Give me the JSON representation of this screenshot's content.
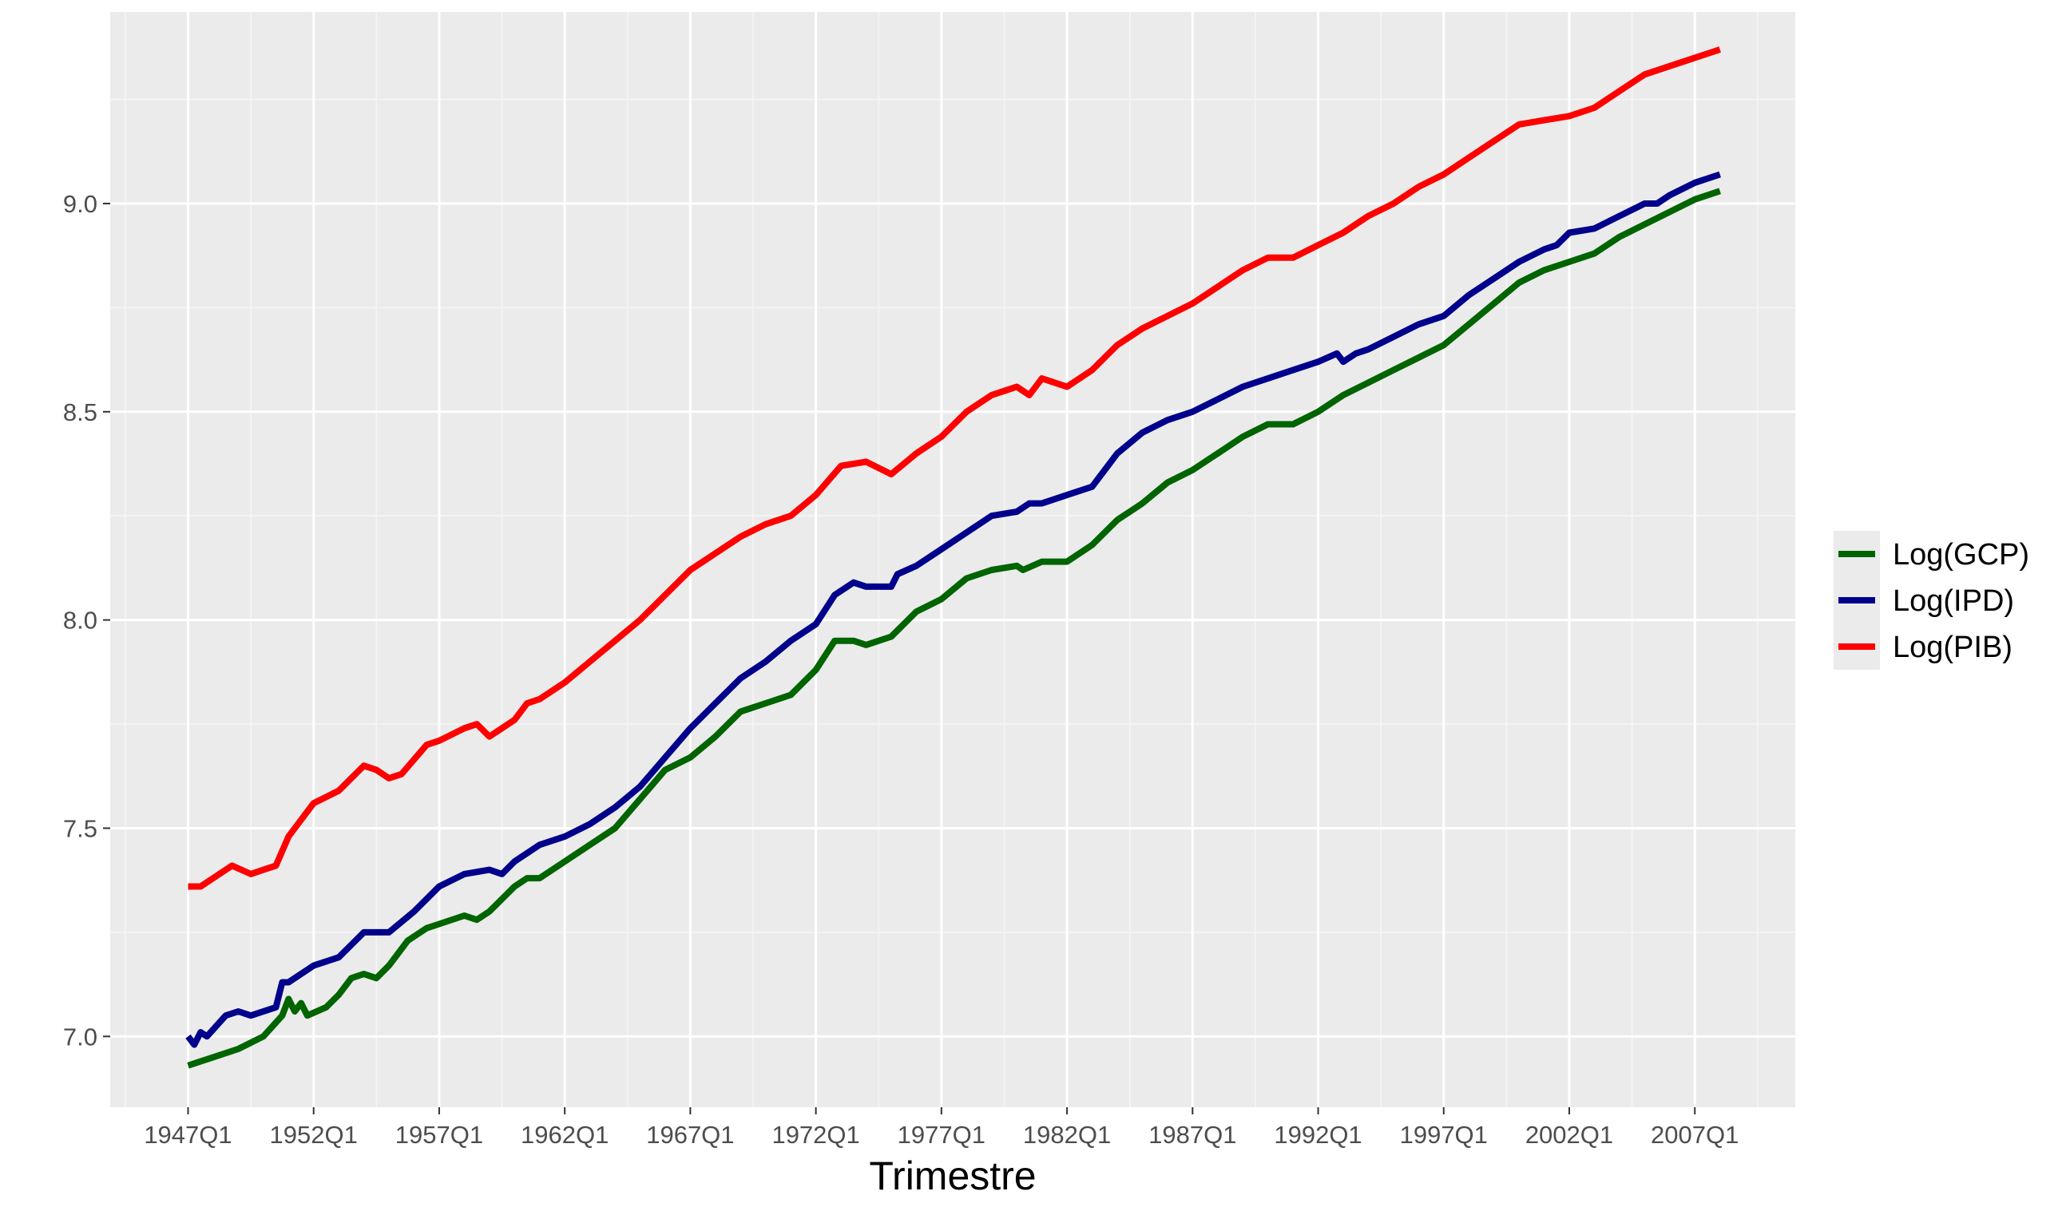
{
  "colors": {
    "panel": "#ebebeb",
    "grid_major": "#ffffff",
    "grid_minor": "#f5f5f5",
    "tick": "#333333",
    "tick_text": "#4d4d4d"
  },
  "chart_data": {
    "type": "line",
    "title": "",
    "xlabel": "Trimestre",
    "ylabel": "",
    "xlim": [
      1943.9,
      2011.0
    ],
    "ylim": [
      6.83,
      9.46
    ],
    "x_ticks": [
      1947,
      1952,
      1957,
      1962,
      1967,
      1972,
      1977,
      1982,
      1987,
      1992,
      1997,
      2002,
      2007
    ],
    "x_tick_labels": [
      "1947Q1",
      "1952Q1",
      "1957Q1",
      "1962Q1",
      "1967Q1",
      "1972Q1",
      "1977Q1",
      "1982Q1",
      "1987Q1",
      "1992Q1",
      "1997Q1",
      "2002Q1",
      "2007Q1"
    ],
    "y_ticks": [
      7.0,
      7.5,
      8.0,
      8.5,
      9.0
    ],
    "y_tick_labels": [
      "7.0",
      "7.5",
      "8.0",
      "8.5",
      "9.0"
    ],
    "grid": true,
    "legend_position": "right",
    "series": [
      {
        "name": "Log(GCP)",
        "color": "#006400",
        "points": [
          [
            1947.0,
            6.93
          ],
          [
            1947.5,
            6.94
          ],
          [
            1948.0,
            6.95
          ],
          [
            1949.0,
            6.97
          ],
          [
            1950.0,
            7.0
          ],
          [
            1950.75,
            7.05
          ],
          [
            1951.0,
            7.09
          ],
          [
            1951.25,
            7.06
          ],
          [
            1951.5,
            7.08
          ],
          [
            1951.75,
            7.05
          ],
          [
            1952.5,
            7.07
          ],
          [
            1953.0,
            7.1
          ],
          [
            1953.5,
            7.14
          ],
          [
            1954.0,
            7.15
          ],
          [
            1954.5,
            7.14
          ],
          [
            1955.0,
            7.17
          ],
          [
            1955.75,
            7.23
          ],
          [
            1956.5,
            7.26
          ],
          [
            1957.0,
            7.27
          ],
          [
            1958.0,
            7.29
          ],
          [
            1958.5,
            7.28
          ],
          [
            1959.0,
            7.3
          ],
          [
            1960.0,
            7.36
          ],
          [
            1960.5,
            7.38
          ],
          [
            1961.0,
            7.38
          ],
          [
            1962.0,
            7.42
          ],
          [
            1963.0,
            7.46
          ],
          [
            1964.0,
            7.5
          ],
          [
            1965.0,
            7.57
          ],
          [
            1966.0,
            7.64
          ],
          [
            1967.0,
            7.67
          ],
          [
            1968.0,
            7.72
          ],
          [
            1969.0,
            7.78
          ],
          [
            1970.0,
            7.8
          ],
          [
            1971.0,
            7.82
          ],
          [
            1972.0,
            7.88
          ],
          [
            1972.75,
            7.95
          ],
          [
            1973.5,
            7.95
          ],
          [
            1974.0,
            7.94
          ],
          [
            1975.0,
            7.96
          ],
          [
            1976.0,
            8.02
          ],
          [
            1977.0,
            8.05
          ],
          [
            1978.0,
            8.1
          ],
          [
            1979.0,
            8.12
          ],
          [
            1980.0,
            8.13
          ],
          [
            1980.25,
            8.12
          ],
          [
            1981.0,
            8.14
          ],
          [
            1982.0,
            8.14
          ],
          [
            1983.0,
            8.18
          ],
          [
            1984.0,
            8.24
          ],
          [
            1985.0,
            8.28
          ],
          [
            1986.0,
            8.33
          ],
          [
            1987.0,
            8.36
          ],
          [
            1988.0,
            8.4
          ],
          [
            1989.0,
            8.44
          ],
          [
            1990.0,
            8.47
          ],
          [
            1991.0,
            8.47
          ],
          [
            1992.0,
            8.5
          ],
          [
            1993.0,
            8.54
          ],
          [
            1994.0,
            8.57
          ],
          [
            1995.0,
            8.6
          ],
          [
            1996.0,
            8.63
          ],
          [
            1997.0,
            8.66
          ],
          [
            1998.0,
            8.71
          ],
          [
            1999.0,
            8.76
          ],
          [
            2000.0,
            8.81
          ],
          [
            2001.0,
            8.84
          ],
          [
            2002.0,
            8.86
          ],
          [
            2003.0,
            8.88
          ],
          [
            2004.0,
            8.92
          ],
          [
            2005.0,
            8.95
          ],
          [
            2006.0,
            8.98
          ],
          [
            2007.0,
            9.01
          ],
          [
            2008.0,
            9.03
          ]
        ]
      },
      {
        "name": "Log(IPD)",
        "color": "#00008b",
        "points": [
          [
            1947.0,
            7.0
          ],
          [
            1947.25,
            6.98
          ],
          [
            1947.5,
            7.01
          ],
          [
            1947.75,
            7.0
          ],
          [
            1948.5,
            7.05
          ],
          [
            1949.0,
            7.06
          ],
          [
            1949.5,
            7.05
          ],
          [
            1950.5,
            7.07
          ],
          [
            1950.75,
            7.13
          ],
          [
            1951.0,
            7.13
          ],
          [
            1952.0,
            7.17
          ],
          [
            1953.0,
            7.19
          ],
          [
            1954.0,
            7.25
          ],
          [
            1954.5,
            7.25
          ],
          [
            1955.0,
            7.25
          ],
          [
            1956.0,
            7.3
          ],
          [
            1957.0,
            7.36
          ],
          [
            1958.0,
            7.39
          ],
          [
            1959.0,
            7.4
          ],
          [
            1959.5,
            7.39
          ],
          [
            1960.0,
            7.42
          ],
          [
            1961.0,
            7.46
          ],
          [
            1962.0,
            7.48
          ],
          [
            1963.0,
            7.51
          ],
          [
            1964.0,
            7.55
          ],
          [
            1965.0,
            7.6
          ],
          [
            1966.0,
            7.67
          ],
          [
            1967.0,
            7.74
          ],
          [
            1968.0,
            7.8
          ],
          [
            1969.0,
            7.86
          ],
          [
            1970.0,
            7.9
          ],
          [
            1971.0,
            7.95
          ],
          [
            1972.0,
            7.99
          ],
          [
            1972.75,
            8.06
          ],
          [
            1973.5,
            8.09
          ],
          [
            1974.0,
            8.08
          ],
          [
            1975.0,
            8.08
          ],
          [
            1975.25,
            8.11
          ],
          [
            1976.0,
            8.13
          ],
          [
            1977.0,
            8.17
          ],
          [
            1978.0,
            8.21
          ],
          [
            1979.0,
            8.25
          ],
          [
            1980.0,
            8.26
          ],
          [
            1980.5,
            8.28
          ],
          [
            1981.0,
            8.28
          ],
          [
            1982.0,
            8.3
          ],
          [
            1983.0,
            8.32
          ],
          [
            1984.0,
            8.4
          ],
          [
            1985.0,
            8.45
          ],
          [
            1986.0,
            8.48
          ],
          [
            1987.0,
            8.5
          ],
          [
            1988.0,
            8.53
          ],
          [
            1989.0,
            8.56
          ],
          [
            1990.0,
            8.58
          ],
          [
            1991.0,
            8.6
          ],
          [
            1992.0,
            8.62
          ],
          [
            1992.75,
            8.64
          ],
          [
            1993.0,
            8.62
          ],
          [
            1993.5,
            8.64
          ],
          [
            1994.0,
            8.65
          ],
          [
            1995.0,
            8.68
          ],
          [
            1996.0,
            8.71
          ],
          [
            1997.0,
            8.73
          ],
          [
            1998.0,
            8.78
          ],
          [
            1999.0,
            8.82
          ],
          [
            2000.0,
            8.86
          ],
          [
            2001.0,
            8.89
          ],
          [
            2001.5,
            8.9
          ],
          [
            2002.0,
            8.93
          ],
          [
            2003.0,
            8.94
          ],
          [
            2004.0,
            8.97
          ],
          [
            2005.0,
            9.0
          ],
          [
            2005.5,
            9.0
          ],
          [
            2006.0,
            9.02
          ],
          [
            2007.0,
            9.05
          ],
          [
            2008.0,
            9.07
          ]
        ]
      },
      {
        "name": "Log(PIB)",
        "color": "#ff0000",
        "points": [
          [
            1947.0,
            7.36
          ],
          [
            1947.5,
            7.36
          ],
          [
            1948.0,
            7.38
          ],
          [
            1948.75,
            7.41
          ],
          [
            1949.5,
            7.39
          ],
          [
            1950.0,
            7.4
          ],
          [
            1950.5,
            7.41
          ],
          [
            1951.0,
            7.48
          ],
          [
            1952.0,
            7.56
          ],
          [
            1953.0,
            7.59
          ],
          [
            1954.0,
            7.65
          ],
          [
            1954.5,
            7.64
          ],
          [
            1955.0,
            7.62
          ],
          [
            1955.5,
            7.63
          ],
          [
            1956.5,
            7.7
          ],
          [
            1957.0,
            7.71
          ],
          [
            1958.0,
            7.74
          ],
          [
            1958.5,
            7.75
          ],
          [
            1959.0,
            7.72
          ],
          [
            1960.0,
            7.76
          ],
          [
            1960.5,
            7.8
          ],
          [
            1961.0,
            7.81
          ],
          [
            1962.0,
            7.85
          ],
          [
            1963.0,
            7.9
          ],
          [
            1964.0,
            7.95
          ],
          [
            1965.0,
            8.0
          ],
          [
            1966.0,
            8.06
          ],
          [
            1967.0,
            8.12
          ],
          [
            1968.0,
            8.16
          ],
          [
            1969.0,
            8.2
          ],
          [
            1970.0,
            8.23
          ],
          [
            1971.0,
            8.25
          ],
          [
            1972.0,
            8.3
          ],
          [
            1973.0,
            8.37
          ],
          [
            1974.0,
            8.38
          ],
          [
            1975.0,
            8.35
          ],
          [
            1976.0,
            8.4
          ],
          [
            1977.0,
            8.44
          ],
          [
            1978.0,
            8.5
          ],
          [
            1979.0,
            8.54
          ],
          [
            1980.0,
            8.56
          ],
          [
            1980.5,
            8.54
          ],
          [
            1981.0,
            8.58
          ],
          [
            1981.5,
            8.57
          ],
          [
            1982.0,
            8.56
          ],
          [
            1983.0,
            8.6
          ],
          [
            1984.0,
            8.66
          ],
          [
            1985.0,
            8.7
          ],
          [
            1986.0,
            8.73
          ],
          [
            1987.0,
            8.76
          ],
          [
            1988.0,
            8.8
          ],
          [
            1989.0,
            8.84
          ],
          [
            1990.0,
            8.87
          ],
          [
            1991.0,
            8.87
          ],
          [
            1992.0,
            8.9
          ],
          [
            1993.0,
            8.93
          ],
          [
            1994.0,
            8.97
          ],
          [
            1995.0,
            9.0
          ],
          [
            1996.0,
            9.04
          ],
          [
            1997.0,
            9.07
          ],
          [
            1998.0,
            9.11
          ],
          [
            1999.0,
            9.15
          ],
          [
            2000.0,
            9.19
          ],
          [
            2001.0,
            9.2
          ],
          [
            2002.0,
            9.21
          ],
          [
            2003.0,
            9.23
          ],
          [
            2004.0,
            9.27
          ],
          [
            2005.0,
            9.31
          ],
          [
            2006.0,
            9.33
          ],
          [
            2007.0,
            9.35
          ],
          [
            2008.0,
            9.37
          ]
        ]
      }
    ]
  }
}
